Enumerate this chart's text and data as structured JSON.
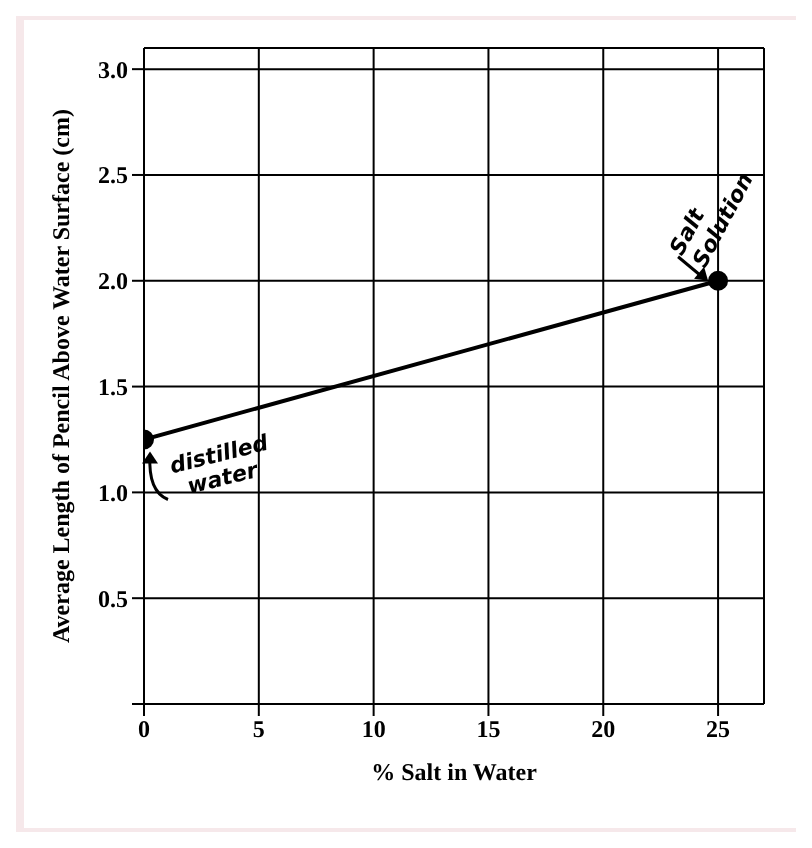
{
  "chart_data": {
    "type": "line",
    "xlabel": "% Salt in Water",
    "ylabel": "Average Length of Pencil Above Water Surface (cm)",
    "x": [
      0,
      25
    ],
    "series": [
      {
        "color": "#000000",
        "values": [
          1.25,
          2.0
        ]
      }
    ],
    "xlim": [
      0,
      27
    ],
    "xticks": [
      0,
      5,
      10,
      15,
      20,
      25
    ],
    "ylim": [
      0,
      3.1
    ],
    "yticks": [
      {
        "value": 0,
        "label": null
      },
      0.5,
      {
        "value": 1,
        "label": "1.0"
      },
      1.5,
      {
        "value": 2,
        "label": "2.0"
      },
      2.5,
      {
        "value": 3,
        "label": "3.0"
      }
    ],
    "grid": true,
    "marker": "circle",
    "line_style": "solid",
    "annotations": [
      {
        "text": "distilled water",
        "x": 0,
        "y": 1.25
      },
      {
        "text": "Salt Solution",
        "x": 25,
        "y": 2.0
      }
    ]
  }
}
